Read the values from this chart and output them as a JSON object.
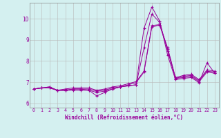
{
  "xlabel": "Windchill (Refroidissement éolien,°C)",
  "bg_color": "#d4f0f0",
  "line_color": "#990099",
  "grid_color": "#b8b8b8",
  "xlim": [
    -0.5,
    23.5
  ],
  "ylim": [
    5.8,
    10.75
  ],
  "xticks": [
    0,
    1,
    2,
    3,
    4,
    5,
    6,
    7,
    8,
    9,
    10,
    11,
    12,
    13,
    14,
    15,
    16,
    17,
    18,
    19,
    20,
    21,
    22,
    23
  ],
  "yticks": [
    6,
    7,
    8,
    9,
    10
  ],
  "series": [
    [
      6.68,
      6.73,
      6.73,
      6.62,
      6.62,
      6.62,
      6.62,
      6.62,
      6.35,
      6.52,
      6.68,
      6.78,
      6.83,
      6.88,
      9.55,
      10.55,
      9.88,
      8.28,
      7.12,
      7.18,
      7.22,
      6.98,
      7.92,
      7.42
    ],
    [
      6.68,
      6.73,
      6.73,
      6.62,
      6.62,
      6.68,
      6.68,
      6.62,
      6.52,
      6.58,
      6.68,
      6.78,
      6.83,
      6.88,
      8.62,
      10.22,
      9.82,
      8.48,
      7.18,
      7.22,
      7.28,
      7.02,
      7.48,
      7.42
    ],
    [
      6.68,
      6.73,
      6.78,
      6.62,
      6.62,
      6.68,
      6.68,
      6.68,
      6.58,
      6.62,
      6.73,
      6.78,
      6.88,
      6.98,
      7.48,
      9.62,
      9.68,
      8.58,
      7.18,
      7.28,
      7.32,
      7.08,
      7.52,
      7.48
    ],
    [
      6.68,
      6.73,
      6.78,
      6.62,
      6.68,
      6.73,
      6.73,
      6.73,
      6.62,
      6.68,
      6.78,
      6.83,
      6.93,
      7.03,
      7.52,
      9.68,
      9.72,
      8.62,
      7.22,
      7.32,
      7.38,
      7.12,
      7.58,
      7.52
    ]
  ]
}
